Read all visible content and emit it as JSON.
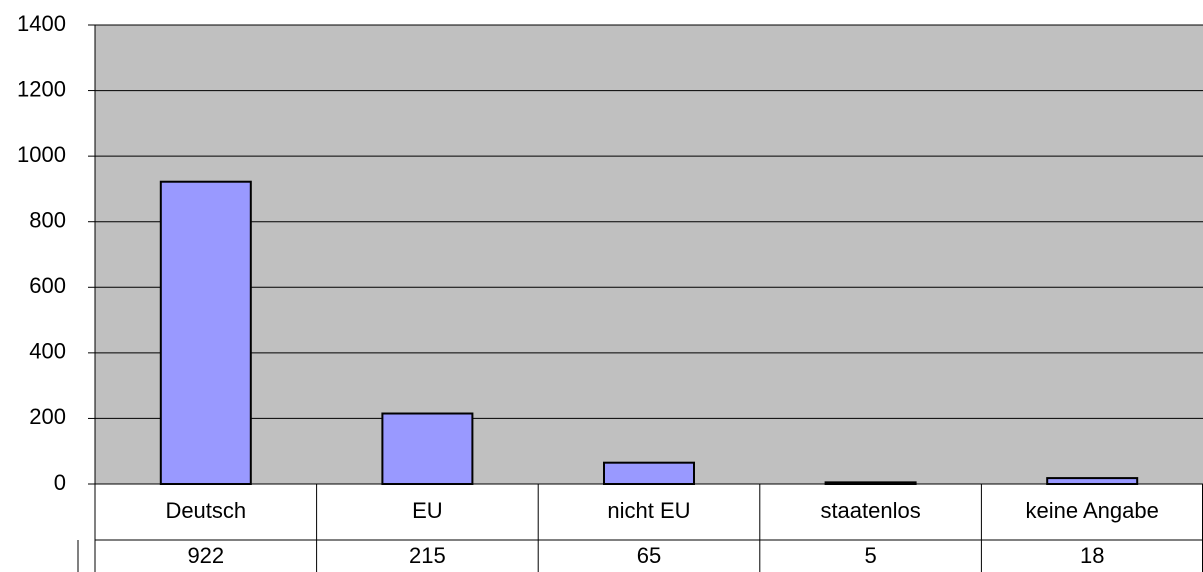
{
  "chart_data": {
    "type": "bar",
    "categories": [
      "Deutsch",
      "EU",
      "nicht EU",
      "staatenlos",
      "keine Angabe"
    ],
    "values": [
      922,
      215,
      65,
      5,
      18
    ],
    "color": "#9999ff",
    "ylim": [
      0,
      1400
    ],
    "yticks": [
      0,
      200,
      400,
      600,
      800,
      1000,
      1200,
      1400
    ],
    "grid": true
  }
}
